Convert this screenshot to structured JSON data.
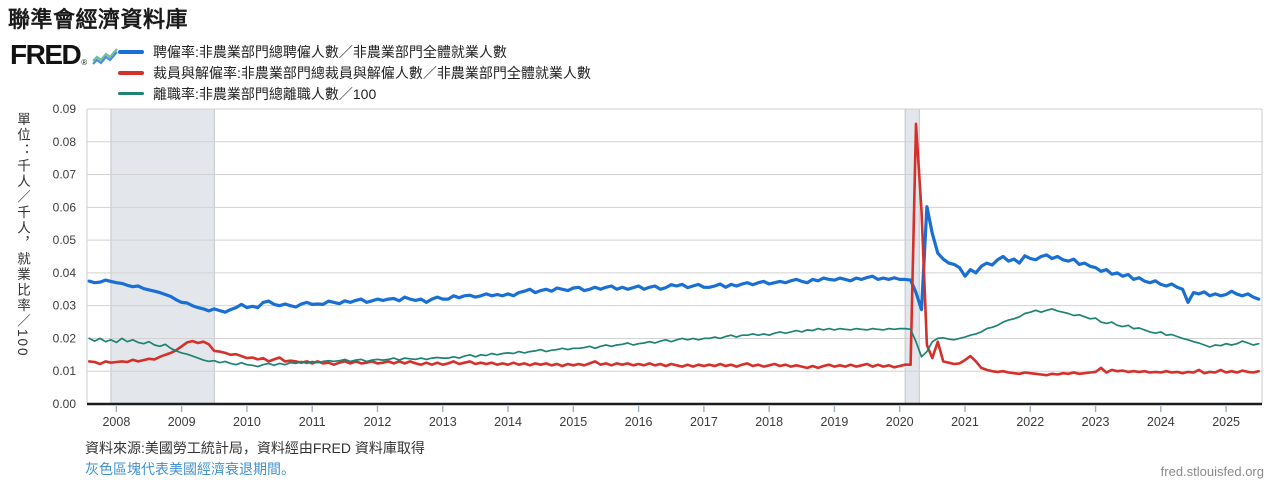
{
  "page": {
    "title": "聯準會經濟資料庫"
  },
  "logo": {
    "wordmark": "FRED",
    "registered": "®",
    "icon": "line-chart-squiggle-icon"
  },
  "legend": [
    {
      "label": "聘僱率:非農業部門總聘僱人數／非農業部門全體就業人數",
      "color": "#1a6fd4"
    },
    {
      "label": "裁員與解僱率:非農業部門總裁員與解僱人數／非農業部門全體就業人數",
      "color": "#d5302a"
    },
    {
      "label": "離職率:非農業部門總離職人數／100",
      "color": "#1e8274"
    }
  ],
  "y_axis": {
    "unit_label": "單位：千人／千人，就業比率／100"
  },
  "footer": {
    "source": "資料來源:美國勞工統計局，資料經由FRED 資料庫取得",
    "recession_note": "灰色區塊代表美國經濟衰退期間。",
    "site": "fred.stlouisfed.org"
  },
  "chart_data": {
    "type": "line",
    "title": "聯準會經濟資料庫",
    "xlabel": "",
    "ylabel": "單位：千人／千人，就業比率／100",
    "x_range": [
      2007.55,
      2025.55
    ],
    "ylim": [
      0,
      0.09
    ],
    "y_ticks": [
      "0.00",
      "0.01",
      "0.02",
      "0.03",
      "0.04",
      "0.05",
      "0.06",
      "0.07",
      "0.08",
      "0.09"
    ],
    "x_tick_years": [
      2008,
      2009,
      2010,
      2011,
      2012,
      2013,
      2014,
      2015,
      2016,
      2017,
      2018,
      2019,
      2020,
      2021,
      2022,
      2023,
      2024,
      2025
    ],
    "grid": "horizontal",
    "legend_position": "top-left",
    "recession_bands": [
      [
        2007.917,
        2009.5
      ],
      [
        2020.083,
        2020.3
      ]
    ],
    "band_color": "#e3e7ec",
    "band_edge_color": "#bfc5cd",
    "grid_color": "#d2d2d2",
    "axis_color": "#1c1c1c",
    "x_start": 2007.5833,
    "x_step": 0.0833333,
    "value_scale": 0.01,
    "series": [
      {
        "name": "聘僱率:非農業部門總聘僱人數／非農業部門全體就業人數",
        "color": "#1a6fd4",
        "width": 3.2,
        "values": [
          3.75,
          3.7,
          3.72,
          3.78,
          3.74,
          3.7,
          3.68,
          3.62,
          3.58,
          3.6,
          3.52,
          3.48,
          3.44,
          3.4,
          3.34,
          3.28,
          3.18,
          3.1,
          3.08,
          3.0,
          2.94,
          2.9,
          2.84,
          2.9,
          2.85,
          2.8,
          2.88,
          2.94,
          3.04,
          2.94,
          2.98,
          2.94,
          3.1,
          3.14,
          3.04,
          3.0,
          3.05,
          3.0,
          2.96,
          3.05,
          3.1,
          3.04,
          3.05,
          3.04,
          3.14,
          3.1,
          3.06,
          3.15,
          3.1,
          3.16,
          3.2,
          3.1,
          3.15,
          3.2,
          3.16,
          3.2,
          3.22,
          3.15,
          3.26,
          3.2,
          3.16,
          3.2,
          3.1,
          3.2,
          3.26,
          3.2,
          3.2,
          3.3,
          3.24,
          3.3,
          3.32,
          3.26,
          3.3,
          3.36,
          3.3,
          3.34,
          3.3,
          3.36,
          3.3,
          3.4,
          3.44,
          3.5,
          3.4,
          3.46,
          3.5,
          3.44,
          3.54,
          3.5,
          3.46,
          3.54,
          3.56,
          3.46,
          3.5,
          3.56,
          3.5,
          3.56,
          3.6,
          3.5,
          3.56,
          3.5,
          3.55,
          3.6,
          3.5,
          3.56,
          3.6,
          3.5,
          3.55,
          3.64,
          3.6,
          3.65,
          3.55,
          3.6,
          3.65,
          3.56,
          3.56,
          3.6,
          3.66,
          3.56,
          3.65,
          3.6,
          3.66,
          3.7,
          3.64,
          3.7,
          3.74,
          3.66,
          3.7,
          3.74,
          3.7,
          3.76,
          3.8,
          3.74,
          3.7,
          3.8,
          3.76,
          3.84,
          3.8,
          3.78,
          3.84,
          3.8,
          3.76,
          3.84,
          3.8,
          3.86,
          3.9,
          3.8,
          3.84,
          3.8,
          3.85,
          3.8,
          3.8,
          3.78,
          3.4,
          2.88,
          6.02,
          5.2,
          4.6,
          4.42,
          4.3,
          4.26,
          4.16,
          3.9,
          4.1,
          4.0,
          4.2,
          4.3,
          4.24,
          4.4,
          4.5,
          4.36,
          4.42,
          4.3,
          4.52,
          4.44,
          4.4,
          4.5,
          4.55,
          4.44,
          4.5,
          4.4,
          4.36,
          4.42,
          4.26,
          4.3,
          4.2,
          4.16,
          4.05,
          4.1,
          3.96,
          4.0,
          3.9,
          3.95,
          3.8,
          3.85,
          3.75,
          3.7,
          3.76,
          3.65,
          3.6,
          3.66,
          3.56,
          3.5,
          3.1,
          3.4,
          3.36,
          3.42,
          3.3,
          3.36,
          3.3,
          3.34,
          3.44,
          3.35,
          3.3,
          3.36,
          3.26,
          3.2
        ]
      },
      {
        "name": "裁員與解僱率:非農業部門總裁員與解僱人數／非農業部門全體就業人數",
        "color": "#d5302a",
        "width": 2.6,
        "values": [
          1.3,
          1.28,
          1.22,
          1.3,
          1.26,
          1.28,
          1.3,
          1.28,
          1.35,
          1.3,
          1.34,
          1.38,
          1.36,
          1.44,
          1.5,
          1.56,
          1.64,
          1.76,
          1.88,
          1.92,
          1.86,
          1.9,
          1.82,
          1.62,
          1.6,
          1.56,
          1.5,
          1.52,
          1.46,
          1.4,
          1.42,
          1.36,
          1.4,
          1.3,
          1.36,
          1.42,
          1.3,
          1.32,
          1.3,
          1.26,
          1.3,
          1.24,
          1.3,
          1.24,
          1.26,
          1.2,
          1.26,
          1.3,
          1.24,
          1.3,
          1.24,
          1.26,
          1.3,
          1.24,
          1.26,
          1.3,
          1.24,
          1.3,
          1.24,
          1.3,
          1.24,
          1.2,
          1.26,
          1.2,
          1.26,
          1.2,
          1.24,
          1.3,
          1.22,
          1.26,
          1.3,
          1.22,
          1.26,
          1.22,
          1.26,
          1.2,
          1.24,
          1.2,
          1.26,
          1.2,
          1.24,
          1.18,
          1.24,
          1.2,
          1.24,
          1.18,
          1.22,
          1.16,
          1.22,
          1.18,
          1.22,
          1.18,
          1.24,
          1.3,
          1.2,
          1.24,
          1.18,
          1.24,
          1.2,
          1.24,
          1.18,
          1.22,
          1.18,
          1.24,
          1.18,
          1.22,
          1.16,
          1.22,
          1.18,
          1.14,
          1.2,
          1.14,
          1.2,
          1.16,
          1.2,
          1.16,
          1.22,
          1.16,
          1.2,
          1.14,
          1.2,
          1.24,
          1.16,
          1.2,
          1.14,
          1.18,
          1.22,
          1.16,
          1.2,
          1.14,
          1.18,
          1.14,
          1.1,
          1.16,
          1.1,
          1.16,
          1.2,
          1.14,
          1.18,
          1.14,
          1.2,
          1.14,
          1.18,
          1.22,
          1.14,
          1.2,
          1.14,
          1.18,
          1.12,
          1.16,
          1.2,
          1.2,
          8.55,
          5.9,
          1.8,
          1.4,
          1.9,
          1.3,
          1.26,
          1.22,
          1.24,
          1.34,
          1.46,
          1.3,
          1.1,
          1.04,
          1.0,
          0.98,
          1.0,
          0.96,
          0.94,
          0.92,
          0.96,
          0.94,
          0.92,
          0.9,
          0.88,
          0.92,
          0.9,
          0.94,
          0.92,
          0.96,
          0.92,
          0.94,
          0.96,
          0.98,
          1.1,
          0.96,
          1.04,
          1.0,
          1.02,
          0.98,
          1.0,
          0.98,
          1.0,
          0.96,
          0.98,
          0.96,
          1.0,
          0.96,
          0.98,
          0.94,
          0.98,
          0.96,
          1.04,
          0.94,
          0.98,
          0.96,
          1.04,
          0.96,
          1.0,
          0.96,
          1.02,
          0.98,
          0.96,
          1.0
        ]
      },
      {
        "name": "離職率:非農業部門總離職人數／100",
        "color": "#1e8274",
        "width": 1.7,
        "values": [
          2.0,
          1.92,
          2.0,
          1.9,
          1.96,
          1.88,
          2.0,
          1.9,
          1.96,
          1.88,
          1.84,
          1.9,
          1.8,
          1.76,
          1.82,
          1.7,
          1.62,
          1.56,
          1.52,
          1.46,
          1.4,
          1.34,
          1.3,
          1.32,
          1.26,
          1.3,
          1.24,
          1.2,
          1.26,
          1.2,
          1.18,
          1.14,
          1.2,
          1.24,
          1.18,
          1.24,
          1.2,
          1.26,
          1.24,
          1.3,
          1.24,
          1.3,
          1.26,
          1.3,
          1.32,
          1.3,
          1.32,
          1.36,
          1.3,
          1.34,
          1.36,
          1.3,
          1.34,
          1.36,
          1.34,
          1.36,
          1.4,
          1.34,
          1.4,
          1.38,
          1.36,
          1.4,
          1.36,
          1.4,
          1.42,
          1.4,
          1.4,
          1.44,
          1.4,
          1.46,
          1.5,
          1.44,
          1.5,
          1.48,
          1.54,
          1.5,
          1.54,
          1.56,
          1.54,
          1.6,
          1.56,
          1.6,
          1.62,
          1.66,
          1.6,
          1.64,
          1.66,
          1.7,
          1.66,
          1.7,
          1.7,
          1.72,
          1.76,
          1.7,
          1.76,
          1.8,
          1.76,
          1.8,
          1.82,
          1.86,
          1.8,
          1.84,
          1.86,
          1.9,
          1.86,
          1.92,
          1.96,
          1.9,
          1.96,
          2.0,
          1.96,
          2.0,
          1.96,
          2.0,
          2.0,
          2.04,
          2.0,
          2.06,
          2.1,
          2.04,
          2.1,
          2.1,
          2.14,
          2.1,
          2.14,
          2.1,
          2.16,
          2.2,
          2.16,
          2.2,
          2.24,
          2.2,
          2.26,
          2.24,
          2.3,
          2.26,
          2.3,
          2.26,
          2.3,
          2.28,
          2.26,
          2.3,
          2.28,
          2.26,
          2.3,
          2.28,
          2.26,
          2.3,
          2.28,
          2.3,
          2.3,
          2.28,
          1.9,
          1.44,
          1.6,
          1.9,
          2.0,
          2.02,
          1.98,
          1.96,
          2.0,
          2.04,
          2.1,
          2.14,
          2.2,
          2.3,
          2.34,
          2.4,
          2.5,
          2.56,
          2.6,
          2.66,
          2.76,
          2.8,
          2.86,
          2.8,
          2.86,
          2.9,
          2.84,
          2.8,
          2.76,
          2.7,
          2.72,
          2.66,
          2.6,
          2.62,
          2.5,
          2.46,
          2.5,
          2.4,
          2.36,
          2.4,
          2.3,
          2.32,
          2.26,
          2.2,
          2.16,
          2.2,
          2.1,
          2.12,
          2.06,
          2.0,
          1.96,
          1.9,
          1.86,
          1.8,
          1.74,
          1.8,
          1.78,
          1.84,
          1.8,
          1.84,
          1.92,
          1.86,
          1.8,
          1.84
        ]
      }
    ]
  }
}
